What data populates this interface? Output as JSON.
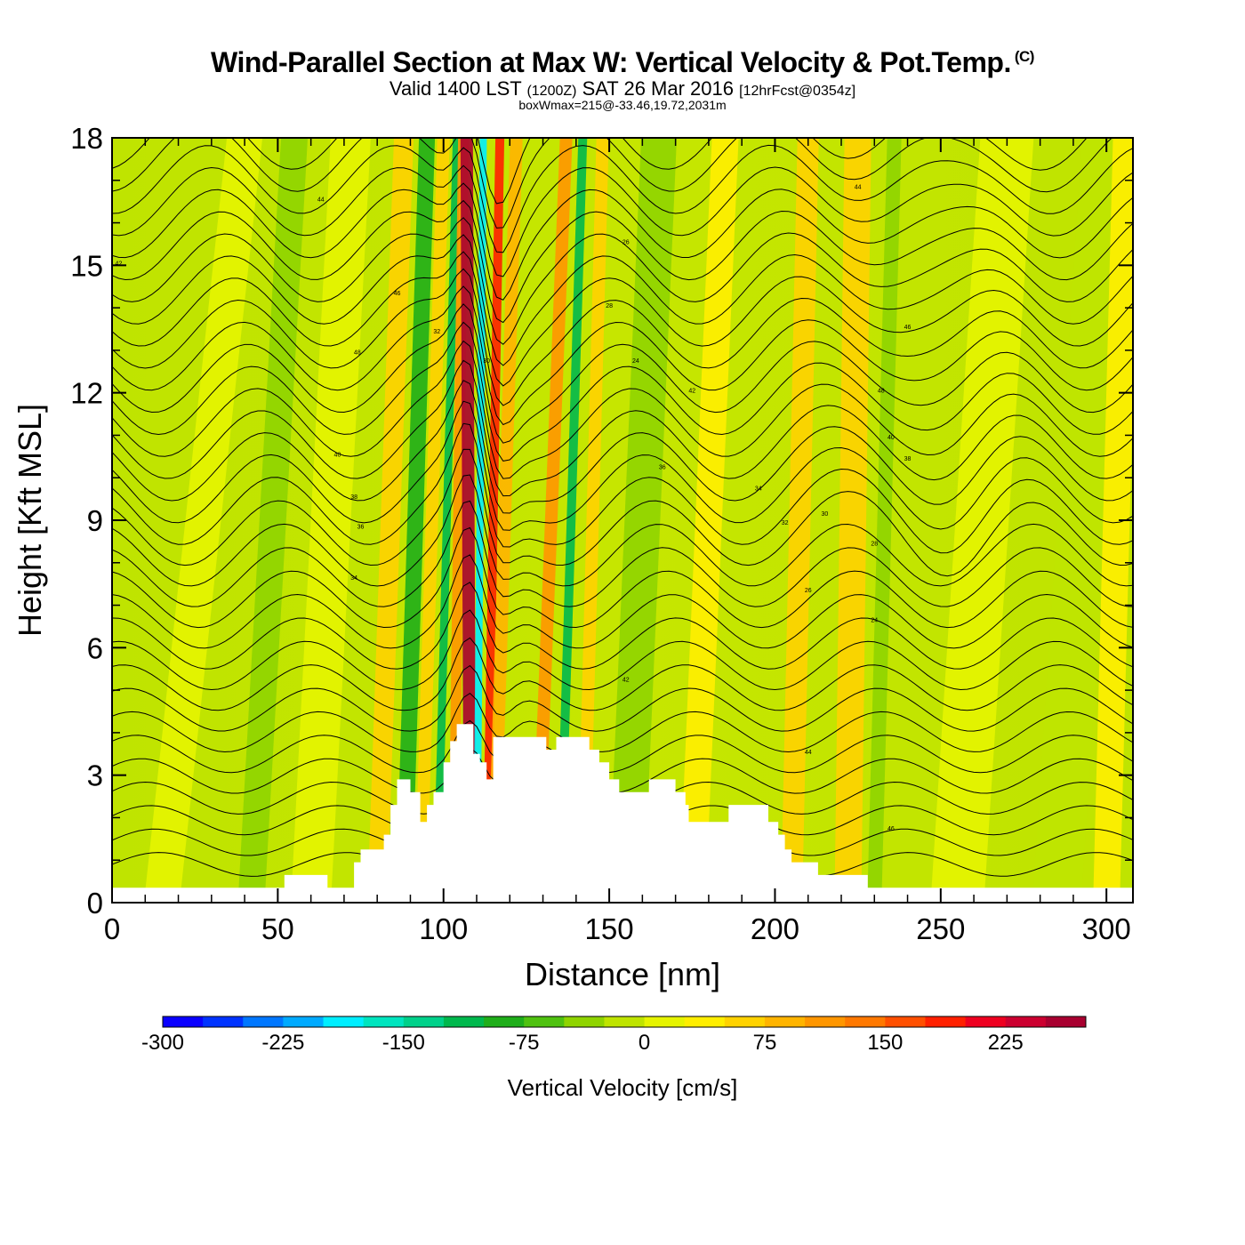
{
  "header": {
    "title": "Wind-Parallel Section at Max W: Vertical Velocity & Pot.Temp.",
    "copyright_mark": "(C)",
    "valid_prefix": "Valid 1400 LST",
    "valid_utc": "(1200Z)",
    "valid_date": "SAT 26 Mar 2016",
    "forecast_info": "[12hrFcst@0354z]",
    "box_info": "boxWmax=215@-33.46,19.72,2031m"
  },
  "chart_data": {
    "type": "heatmap",
    "xlabel": "Distance [nm]",
    "ylabel": "Height [Kft MSL]",
    "xlim": [
      0,
      308
    ],
    "ylim": [
      0,
      18
    ],
    "x_ticks": [
      "0",
      "50",
      "100",
      "150",
      "200",
      "250",
      "300"
    ],
    "x_tick_values": [
      0,
      50,
      100,
      150,
      200,
      250,
      300
    ],
    "y_ticks": [
      "0",
      "3",
      "6",
      "9",
      "12",
      "15",
      "18"
    ],
    "y_tick_values": [
      0,
      3,
      6,
      9,
      12,
      15,
      18
    ],
    "terrain_kft": [
      [
        0,
        0.35
      ],
      [
        52,
        0.35
      ],
      [
        52,
        0.65
      ],
      [
        65,
        0.65
      ],
      [
        65,
        0.35
      ],
      [
        73,
        0.35
      ],
      [
        73,
        0.95
      ],
      [
        75,
        0.95
      ],
      [
        75,
        1.25
      ],
      [
        82,
        1.25
      ],
      [
        82,
        1.6
      ],
      [
        84,
        1.6
      ],
      [
        84,
        2.3
      ],
      [
        86,
        2.3
      ],
      [
        86,
        2.9
      ],
      [
        90,
        2.9
      ],
      [
        90,
        2.6
      ],
      [
        93,
        2.6
      ],
      [
        93,
        1.9
      ],
      [
        95,
        1.9
      ],
      [
        95,
        2.3
      ],
      [
        97,
        2.3
      ],
      [
        97,
        2.6
      ],
      [
        100,
        2.6
      ],
      [
        100,
        3.3
      ],
      [
        102,
        3.3
      ],
      [
        102,
        3.8
      ],
      [
        104,
        3.8
      ],
      [
        104,
        4.2
      ],
      [
        109,
        4.2
      ],
      [
        109,
        3.5
      ],
      [
        111,
        3.5
      ],
      [
        111,
        3.3
      ],
      [
        113,
        3.3
      ],
      [
        113,
        2.9
      ],
      [
        115,
        2.9
      ],
      [
        115,
        3.9
      ],
      [
        131,
        3.9
      ],
      [
        131,
        3.6
      ],
      [
        134,
        3.6
      ],
      [
        134,
        3.9
      ],
      [
        144,
        3.9
      ],
      [
        144,
        3.6
      ],
      [
        147,
        3.6
      ],
      [
        147,
        3.3
      ],
      [
        150,
        3.3
      ],
      [
        150,
        2.9
      ],
      [
        153,
        2.9
      ],
      [
        153,
        2.6
      ],
      [
        162,
        2.6
      ],
      [
        162,
        2.9
      ],
      [
        170,
        2.9
      ],
      [
        170,
        2.6
      ],
      [
        173,
        2.6
      ],
      [
        173,
        2.3
      ],
      [
        174,
        2.3
      ],
      [
        174,
        1.9
      ],
      [
        186,
        1.9
      ],
      [
        186,
        2.3
      ],
      [
        198,
        2.3
      ],
      [
        198,
        1.9
      ],
      [
        201,
        1.9
      ],
      [
        201,
        1.6
      ],
      [
        203,
        1.6
      ],
      [
        203,
        1.25
      ],
      [
        205,
        1.25
      ],
      [
        205,
        0.95
      ],
      [
        213,
        0.95
      ],
      [
        213,
        0.65
      ],
      [
        228,
        0.65
      ],
      [
        228,
        0.35
      ],
      [
        308,
        0.35
      ]
    ],
    "contour_labels": [
      "42",
      "44",
      "46",
      "48",
      "40",
      "38",
      "36",
      "34",
      "32",
      "30",
      "28",
      "26",
      "24"
    ],
    "colorbar": {
      "label": "Vertical Velocity [cm/s]",
      "min": -300,
      "max": 275,
      "step": 25,
      "tick_labels": [
        "-300",
        "-225",
        "-150",
        "-75",
        "0",
        "75",
        "150",
        "225"
      ],
      "tick_values": [
        -300,
        -225,
        -150,
        -75,
        0,
        75,
        150,
        225
      ],
      "colors": [
        "#0a00ff",
        "#0033ff",
        "#0077ff",
        "#00aaff",
        "#00eeff",
        "#00e5bf",
        "#00d18a",
        "#00b84d",
        "#1fae1a",
        "#4fc210",
        "#8fd400",
        "#bfe400",
        "#e6f400",
        "#ffee00",
        "#ffd200",
        "#ffb400",
        "#ff9600",
        "#ff7800",
        "#ff4f00",
        "#ff2000",
        "#ee0020",
        "#cc0030",
        "#a80030"
      ]
    }
  }
}
